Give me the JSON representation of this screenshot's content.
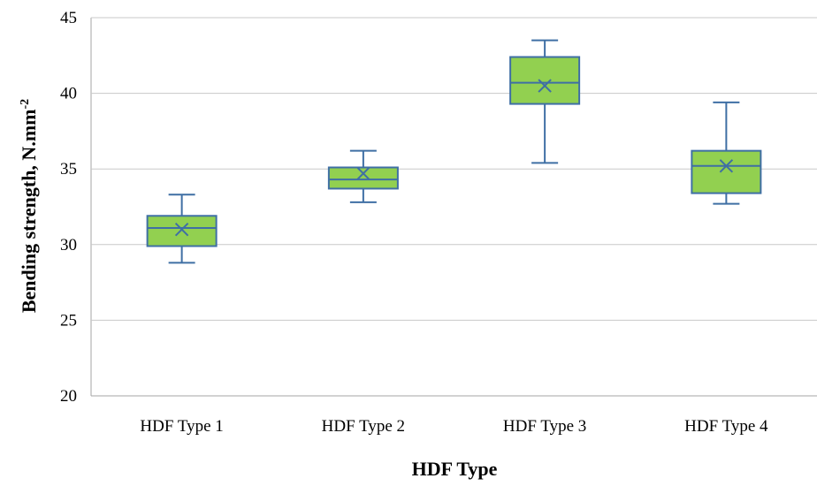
{
  "chart_data": {
    "type": "boxplot",
    "xlabel": "HDF Type",
    "ylabel": "Bending strength, N.mm",
    "ylabel_superscript": "-2",
    "ylim": [
      20,
      45
    ],
    "yticks": [
      20,
      25,
      30,
      35,
      40,
      45
    ],
    "grid": true,
    "categories": [
      "HDF Type 1",
      "HDF Type 2",
      "HDF Type 3",
      "HDF Type 4"
    ],
    "boxes": [
      {
        "category": "HDF Type 1",
        "min": 28.8,
        "q1": 29.9,
        "median": 31.1,
        "mean": 31.0,
        "q3": 31.9,
        "max": 33.3
      },
      {
        "category": "HDF Type 2",
        "min": 32.8,
        "q1": 33.7,
        "median": 34.3,
        "mean": 34.7,
        "q3": 35.1,
        "max": 36.2
      },
      {
        "category": "HDF Type 3",
        "min": 35.4,
        "q1": 39.3,
        "median": 40.7,
        "mean": 40.5,
        "q3": 42.4,
        "max": 43.5
      },
      {
        "category": "HDF Type 4",
        "min": 32.7,
        "q1": 33.4,
        "median": 35.2,
        "mean": 35.2,
        "q3": 36.2,
        "max": 39.4
      }
    ],
    "colors": {
      "box_fill": "#92D050",
      "box_stroke": "#3F6FA4",
      "grid": "#C8C8C8",
      "axis": "#A6A6A6"
    }
  }
}
